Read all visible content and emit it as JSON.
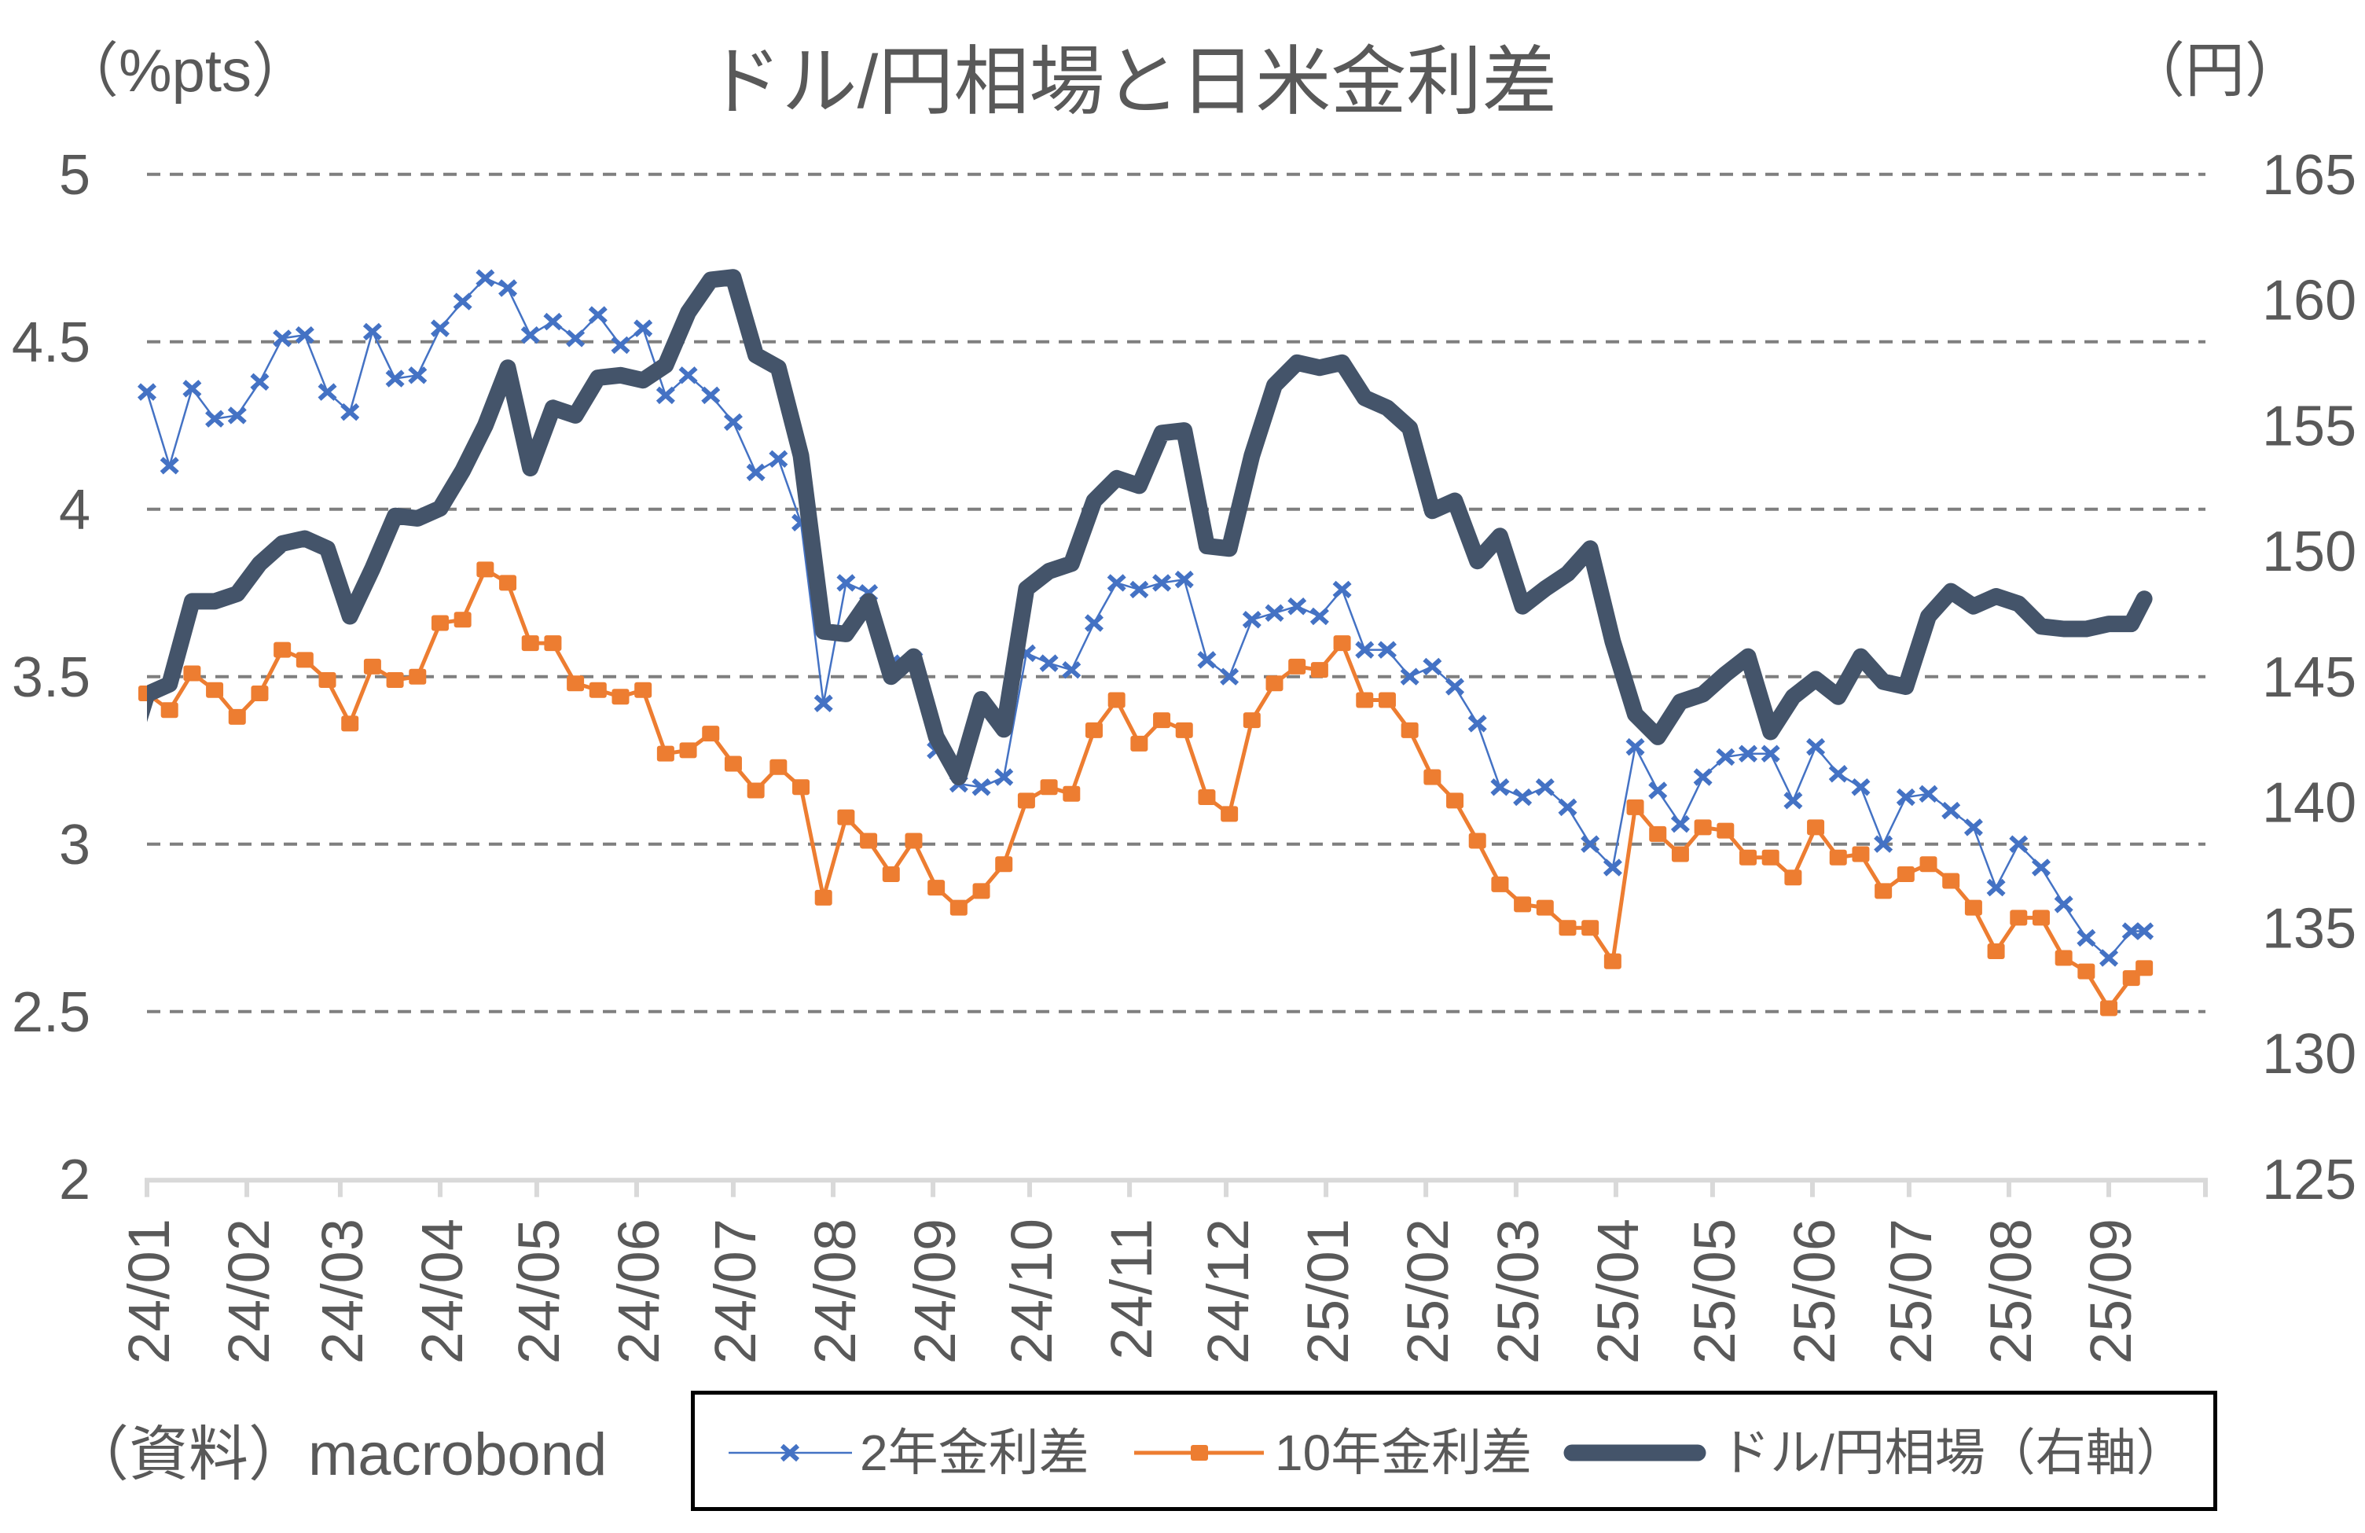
{
  "chart_data": {
    "type": "line",
    "title": "ドル/円相場と日米金利差",
    "xlabel": "",
    "x_axis": {
      "type": "date",
      "min": "2024-01-01",
      "max": "2025-10-01",
      "tick_labels": [
        "24/01",
        "24/02",
        "24/03",
        "24/04",
        "24/05",
        "24/06",
        "24/07",
        "24/08",
        "24/09",
        "24/10",
        "24/11",
        "24/12",
        "25/01",
        "25/02",
        "25/03",
        "25/04",
        "25/05",
        "25/06",
        "25/07",
        "25/08",
        "25/09"
      ]
    },
    "y_left": {
      "label": "（%pts）",
      "min": 2,
      "max": 5,
      "ticks": [
        2,
        2.5,
        3,
        3.5,
        4,
        4.5,
        5
      ]
    },
    "y_right": {
      "label": "（円）",
      "min": 125,
      "max": 165,
      "ticks": [
        125,
        130,
        135,
        140,
        145,
        150,
        155,
        160,
        165
      ]
    },
    "grid": {
      "horizontal": true,
      "style": "dashed",
      "axis": "left"
    },
    "legend": {
      "position": "bottom-right",
      "boxed": true
    },
    "x": [
      "2024-01-01",
      "2024-01-08",
      "2024-01-15",
      "2024-01-22",
      "2024-01-29",
      "2024-02-05",
      "2024-02-12",
      "2024-02-19",
      "2024-02-26",
      "2024-03-04",
      "2024-03-11",
      "2024-03-18",
      "2024-03-25",
      "2024-04-01",
      "2024-04-08",
      "2024-04-15",
      "2024-04-22",
      "2024-04-29",
      "2024-05-06",
      "2024-05-13",
      "2024-05-20",
      "2024-05-27",
      "2024-06-03",
      "2024-06-10",
      "2024-06-17",
      "2024-06-24",
      "2024-07-01",
      "2024-07-08",
      "2024-07-15",
      "2024-07-22",
      "2024-07-29",
      "2024-08-05",
      "2024-08-12",
      "2024-08-19",
      "2024-08-26",
      "2024-09-02",
      "2024-09-09",
      "2024-09-16",
      "2024-09-23",
      "2024-09-30",
      "2024-10-07",
      "2024-10-14",
      "2024-10-21",
      "2024-10-28",
      "2024-11-04",
      "2024-11-11",
      "2024-11-18",
      "2024-11-25",
      "2024-12-02",
      "2024-12-09",
      "2024-12-16",
      "2024-12-23",
      "2024-12-30",
      "2025-01-06",
      "2025-01-13",
      "2025-01-20",
      "2025-01-27",
      "2025-02-03",
      "2025-02-10",
      "2025-02-17",
      "2025-02-24",
      "2025-03-03",
      "2025-03-10",
      "2025-03-17",
      "2025-03-24",
      "2025-03-31",
      "2025-04-07",
      "2025-04-14",
      "2025-04-21",
      "2025-04-28",
      "2025-05-05",
      "2025-05-12",
      "2025-05-19",
      "2025-05-26",
      "2025-06-02",
      "2025-06-09",
      "2025-06-16",
      "2025-06-23",
      "2025-06-30",
      "2025-07-07",
      "2025-07-14",
      "2025-07-21",
      "2025-07-28",
      "2025-08-04",
      "2025-08-11",
      "2025-08-18",
      "2025-08-25",
      "2025-09-01",
      "2025-09-08",
      "2025-09-12"
    ],
    "series": [
      {
        "name": "2年金利差",
        "axis": "left",
        "color": "#4472C4",
        "marker": "x",
        "values": [
          4.35,
          4.13,
          4.36,
          4.27,
          4.28,
          4.38,
          4.51,
          4.52,
          4.35,
          4.29,
          4.53,
          4.39,
          4.4,
          4.54,
          4.62,
          4.69,
          4.66,
          4.52,
          4.56,
          4.51,
          4.58,
          4.49,
          4.54,
          4.34,
          4.4,
          4.34,
          4.26,
          4.11,
          4.15,
          3.96,
          3.42,
          3.78,
          3.75,
          3.54,
          3.55,
          3.28,
          3.18,
          3.17,
          3.2,
          3.57,
          3.54,
          3.52,
          3.66,
          3.78,
          3.76,
          3.78,
          3.79,
          3.55,
          3.5,
          3.67,
          3.69,
          3.71,
          3.68,
          3.76,
          3.58,
          3.58,
          3.5,
          3.53,
          3.47,
          3.36,
          3.17,
          3.14,
          3.17,
          3.11,
          3.0,
          2.93,
          3.29,
          3.16,
          3.06,
          3.2,
          3.26,
          3.27,
          3.27,
          3.13,
          3.29,
          3.21,
          3.17,
          3.0,
          3.14,
          3.15,
          3.1,
          3.05,
          2.87,
          3.0,
          2.93,
          2.82,
          2.72,
          2.66,
          2.74,
          2.74
        ]
      },
      {
        "name": "10年金利差",
        "axis": "left",
        "color": "#ED7D31",
        "marker": "square",
        "values": [
          3.45,
          3.4,
          3.51,
          3.46,
          3.38,
          3.45,
          3.58,
          3.55,
          3.49,
          3.36,
          3.53,
          3.49,
          3.5,
          3.66,
          3.67,
          3.82,
          3.78,
          3.6,
          3.6,
          3.48,
          3.46,
          3.44,
          3.46,
          3.27,
          3.28,
          3.33,
          3.24,
          3.16,
          3.23,
          3.17,
          2.84,
          3.08,
          3.01,
          2.91,
          3.01,
          2.87,
          2.81,
          2.86,
          2.94,
          3.13,
          3.17,
          3.15,
          3.34,
          3.43,
          3.3,
          3.37,
          3.34,
          3.14,
          3.09,
          3.37,
          3.48,
          3.53,
          3.52,
          3.6,
          3.43,
          3.43,
          3.34,
          3.2,
          3.13,
          3.01,
          2.88,
          2.82,
          2.81,
          2.75,
          2.75,
          2.65,
          3.11,
          3.03,
          2.97,
          3.05,
          3.04,
          2.96,
          2.96,
          2.9,
          3.05,
          2.96,
          2.97,
          2.86,
          2.91,
          2.94,
          2.89,
          2.81,
          2.68,
          2.78,
          2.78,
          2.66,
          2.62,
          2.51,
          2.6,
          2.63
        ]
      },
      {
        "name": "ドル/円相場（右軸）",
        "axis": "right",
        "color": "#44546A",
        "marker": "none",
        "leading_point": {
          "x": "2023-12-25",
          "value": 141.4
        },
        "values": [
          144.3,
          144.7,
          148.0,
          148.0,
          148.3,
          149.5,
          150.3,
          150.5,
          150.1,
          147.4,
          149.3,
          151.4,
          151.3,
          151.7,
          153.2,
          155.0,
          157.3,
          153.3,
          155.7,
          155.4,
          156.9,
          157.0,
          156.8,
          157.4,
          159.5,
          160.8,
          160.9,
          157.8,
          157.3,
          153.8,
          146.8,
          146.7,
          148.0,
          145.0,
          145.8,
          142.6,
          141.0,
          144.1,
          142.9,
          148.5,
          149.2,
          149.5,
          152.0,
          152.9,
          152.6,
          154.7,
          154.8,
          150.2,
          150.1,
          153.8,
          156.6,
          157.5,
          157.3,
          157.5,
          156.1,
          155.7,
          154.9,
          151.6,
          152.0,
          149.6,
          150.6,
          147.8,
          148.5,
          149.1,
          150.1,
          146.4,
          143.5,
          142.6,
          144.0,
          144.3,
          145.1,
          145.8,
          142.8,
          144.2,
          144.9,
          144.2,
          145.8,
          144.8,
          144.6,
          147.4,
          148.4,
          147.8,
          148.2,
          147.9,
          147.0,
          146.9,
          146.9,
          147.1,
          147.1,
          148.1
        ]
      }
    ]
  },
  "source": "（資料）macrobond"
}
